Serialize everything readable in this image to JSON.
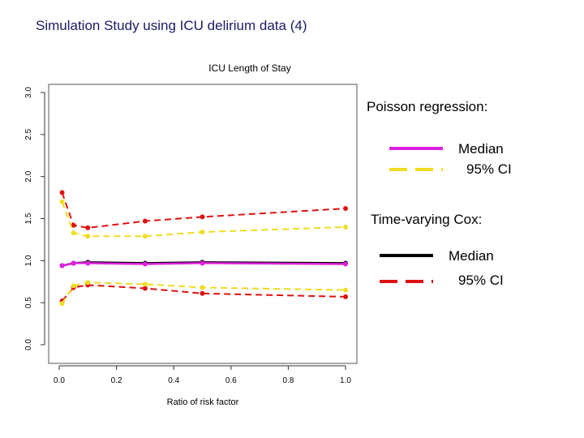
{
  "slide": {
    "title": "Simulation Study using ICU delirium data (4)"
  },
  "colors": {
    "poisson_median": "#dd22dd",
    "poisson_ci": "#eedd22",
    "cox_median": "#000000",
    "cox_ci": "#dd1111"
  },
  "legend": {
    "poisson_heading": "Poisson regression:",
    "poisson_median_label": "Median",
    "poisson_ci_label": "95% CI",
    "cox_heading": "Time-varying Cox:",
    "cox_median_label": "Median",
    "cox_ci_label": "95% CI"
  },
  "chart_data": {
    "type": "line",
    "title": "ICU Length of Stay",
    "xlabel": "Ratio of risk factor",
    "ylabel": "",
    "xlim": [
      0.0,
      1.0
    ],
    "ylim": [
      0.0,
      3.0
    ],
    "xticks": [
      "0.0",
      "0.2",
      "0.4",
      "0.6",
      "0.8",
      "1.0"
    ],
    "yticks": [
      "0.0",
      "0.5",
      "1.0",
      "1.5",
      "2.0",
      "2.5",
      "3.0"
    ],
    "x": [
      0.01,
      0.05,
      0.1,
      0.3,
      0.5,
      1.0
    ],
    "series": [
      {
        "name": "Poisson regression Median",
        "values": [
          0.94,
          0.97,
          0.97,
          0.96,
          0.97,
          0.96
        ]
      },
      {
        "name": "Poisson regression 95% CI",
        "values": [
          1.7,
          1.33,
          1.29,
          1.29,
          1.34,
          1.4
        ]
      },
      {
        "name": "Poisson regression 95% CI",
        "values": [
          0.49,
          0.7,
          0.74,
          0.72,
          0.68,
          0.65
        ]
      },
      {
        "name": "Time-varying Cox Median",
        "values": [
          0.94,
          0.97,
          0.98,
          0.97,
          0.98,
          0.97
        ]
      },
      {
        "name": "Time-varying Cox 95% CI",
        "values": [
          1.81,
          1.42,
          1.39,
          1.47,
          1.52,
          1.62
        ]
      },
      {
        "name": "Time-varying Cox 95% CI",
        "values": [
          0.52,
          0.68,
          0.71,
          0.67,
          0.61,
          0.57
        ]
      }
    ]
  }
}
